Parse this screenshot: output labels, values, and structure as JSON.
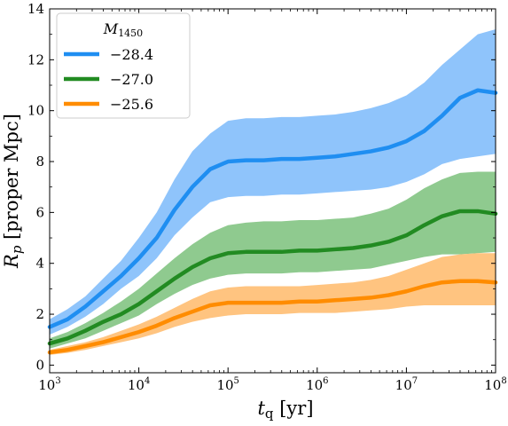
{
  "chart_data": {
    "type": "line",
    "xlabel_symbol": "t",
    "xlabel_sub": "q",
    "xlabel_unit": "[yr]",
    "ylabel_symbol": "R",
    "ylabel_sub": "p",
    "ylabel_unit": "[proper Mpc]",
    "x_scale": "log",
    "xlim": [
      1000,
      100000000
    ],
    "ylim": [
      -0.3,
      14
    ],
    "y_ticks": [
      0,
      2,
      4,
      6,
      8,
      10,
      12,
      14
    ],
    "x_ticks": [
      {
        "value": 1000,
        "base": "10",
        "exp": "3"
      },
      {
        "value": 10000,
        "base": "10",
        "exp": "4"
      },
      {
        "value": 100000,
        "base": "10",
        "exp": "5"
      },
      {
        "value": 1000000,
        "base": "10",
        "exp": "6"
      },
      {
        "value": 10000000,
        "base": "10",
        "exp": "7"
      },
      {
        "value": 100000000,
        "base": "10",
        "exp": "8"
      }
    ],
    "grid": false,
    "legend": {
      "placement": "top-left",
      "title_symbol": "M",
      "title_sub": "1450"
    },
    "x": [
      1000,
      1585,
      2512,
      3981,
      6310,
      10000,
      15850,
      25120,
      39810,
      63100,
      100000,
      158500,
      251200,
      398100,
      631000,
      1000000,
      1585000,
      2512000,
      3981000,
      6310000,
      10000000,
      15850000,
      25120000,
      39810000,
      63100000,
      100000000
    ],
    "series": [
      {
        "name": "−28.4",
        "color": "#1f8ef1",
        "fill": "#8fc4fb",
        "values": [
          1.5,
          1.8,
          2.3,
          2.9,
          3.5,
          4.2,
          5.0,
          6.1,
          7.0,
          7.7,
          8.0,
          8.05,
          8.05,
          8.1,
          8.1,
          8.15,
          8.2,
          8.3,
          8.4,
          8.55,
          8.8,
          9.2,
          9.8,
          10.5,
          10.8,
          10.7
        ],
        "lower": [
          1.2,
          1.5,
          1.9,
          2.4,
          3.0,
          3.5,
          4.2,
          5.1,
          5.8,
          6.4,
          6.6,
          6.65,
          6.65,
          6.7,
          6.7,
          6.75,
          6.8,
          6.85,
          6.9,
          7.0,
          7.2,
          7.5,
          7.9,
          8.1,
          8.2,
          8.3
        ],
        "upper": [
          1.8,
          2.2,
          2.7,
          3.4,
          4.1,
          5.0,
          6.0,
          7.3,
          8.4,
          9.1,
          9.6,
          9.7,
          9.7,
          9.75,
          9.75,
          9.8,
          9.85,
          9.95,
          10.1,
          10.3,
          10.6,
          11.1,
          11.8,
          12.4,
          13.0,
          13.2
        ]
      },
      {
        "name": "−27.0",
        "color": "#228b22",
        "fill": "#8fca8f",
        "values": [
          0.85,
          1.05,
          1.35,
          1.7,
          2.0,
          2.4,
          2.9,
          3.4,
          3.85,
          4.2,
          4.4,
          4.45,
          4.45,
          4.45,
          4.5,
          4.5,
          4.55,
          4.6,
          4.7,
          4.85,
          5.1,
          5.5,
          5.85,
          6.05,
          6.05,
          5.95
        ],
        "lower": [
          0.65,
          0.85,
          1.05,
          1.35,
          1.65,
          1.95,
          2.4,
          2.8,
          3.15,
          3.4,
          3.55,
          3.6,
          3.6,
          3.6,
          3.65,
          3.65,
          3.7,
          3.75,
          3.8,
          3.95,
          4.1,
          4.25,
          4.35,
          4.35,
          4.4,
          4.45
        ],
        "upper": [
          1.05,
          1.3,
          1.65,
          2.05,
          2.5,
          3.0,
          3.6,
          4.2,
          4.75,
          5.2,
          5.5,
          5.6,
          5.65,
          5.65,
          5.7,
          5.7,
          5.75,
          5.8,
          5.95,
          6.15,
          6.5,
          6.95,
          7.3,
          7.55,
          7.6,
          7.6
        ]
      },
      {
        "name": "−25.6",
        "color": "#ff8c00",
        "fill": "#ffc480",
        "values": [
          0.5,
          0.6,
          0.75,
          0.9,
          1.1,
          1.3,
          1.55,
          1.85,
          2.1,
          2.35,
          2.45,
          2.45,
          2.45,
          2.45,
          2.5,
          2.5,
          2.55,
          2.6,
          2.65,
          2.75,
          2.9,
          3.1,
          3.25,
          3.3,
          3.3,
          3.25
        ],
        "lower": [
          0.4,
          0.48,
          0.6,
          0.75,
          0.9,
          1.05,
          1.25,
          1.5,
          1.7,
          1.85,
          1.95,
          2.0,
          2.0,
          2.0,
          2.05,
          2.05,
          2.05,
          2.1,
          2.15,
          2.2,
          2.3,
          2.35,
          2.35,
          2.35,
          2.35,
          2.35
        ],
        "upper": [
          0.6,
          0.75,
          0.9,
          1.1,
          1.35,
          1.6,
          1.9,
          2.25,
          2.6,
          2.9,
          3.05,
          3.1,
          3.1,
          3.1,
          3.1,
          3.15,
          3.2,
          3.25,
          3.35,
          3.5,
          3.75,
          4.0,
          4.25,
          4.35,
          4.4,
          4.4
        ]
      }
    ]
  }
}
